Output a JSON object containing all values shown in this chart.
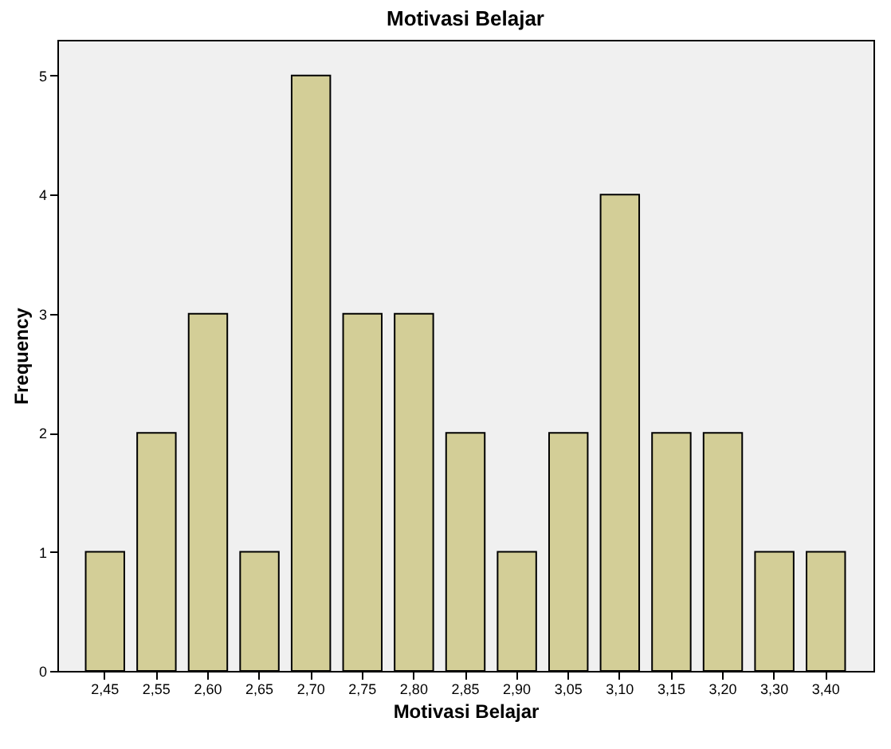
{
  "chart_data": {
    "type": "bar",
    "title": "Motivasi Belajar",
    "xlabel": "Motivasi Belajar",
    "ylabel": "Frequency",
    "categories": [
      "2,45",
      "2,55",
      "2,60",
      "2,65",
      "2,70",
      "2,75",
      "2,80",
      "2,85",
      "2,90",
      "3,05",
      "3,10",
      "3,15",
      "3,20",
      "3,30",
      "3,40"
    ],
    "values": [
      1,
      2,
      3,
      1,
      5,
      3,
      3,
      2,
      1,
      2,
      4,
      2,
      2,
      1,
      1
    ],
    "color": "#d3ce97",
    "ylim": [
      0,
      5.3
    ],
    "yticks": [
      0,
      1,
      2,
      3,
      4,
      5
    ],
    "grid": false
  }
}
